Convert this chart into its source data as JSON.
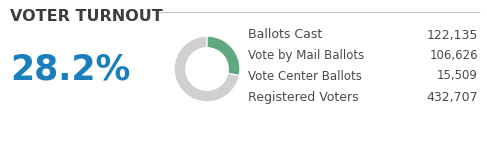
{
  "title": "VOTER TURNOUT",
  "title_color": "#3d3d3d",
  "background_color": "#ffffff",
  "border_line_color": "#c8c8c8",
  "percentage": "28.2%",
  "percentage_color": "#1b7fbf",
  "donut_filled_color": "#5fa882",
  "donut_empty_color": "#d0d0d0",
  "donut_pct": 28.2,
  "labels": [
    "Ballots Cast",
    "Vote by Mail Ballots",
    "Vote Center Ballots",
    "Registered Voters"
  ],
  "values": [
    "122,135",
    "106,626",
    "15,509",
    "432,707"
  ],
  "label_color": "#4a4a4a",
  "value_color": "#4a4a4a",
  "figsize": [
    4.87,
    1.47
  ],
  "dpi": 100
}
